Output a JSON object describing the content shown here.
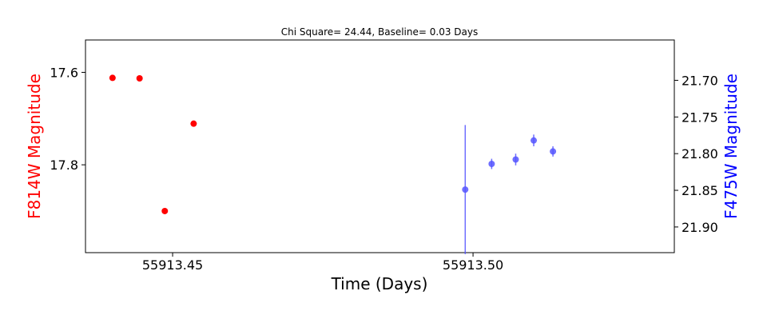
{
  "chart_data": {
    "type": "scatter",
    "title": "Chi Square= 24.44, Baseline= 0.03 Days",
    "xlabel": "Time (Days)",
    "xlim": [
      55913.4355,
      55913.5335
    ],
    "xticks": [
      {
        "value": 55913.45,
        "label": "55913.45"
      },
      {
        "value": 55913.5,
        "label": "55913.50"
      }
    ],
    "y_left": {
      "label": "F814W Magnitude",
      "color": "#ff0000",
      "inverted": true,
      "ylim": [
        17.53,
        17.99
      ],
      "ticks": [
        {
          "value": 17.6,
          "label": "17.6"
        },
        {
          "value": 17.8,
          "label": "17.8"
        }
      ]
    },
    "y_right": {
      "label": "F475W Magnitude",
      "color": "#0000ff",
      "inverted": true,
      "ylim": [
        21.645,
        21.935
      ],
      "ticks": [
        {
          "value": 21.7,
          "label": "21.70"
        },
        {
          "value": 21.75,
          "label": "21.75"
        },
        {
          "value": 21.8,
          "label": "21.80"
        },
        {
          "value": 21.85,
          "label": "21.85"
        },
        {
          "value": 21.9,
          "label": "21.90"
        }
      ]
    },
    "series": [
      {
        "axis": "left",
        "color": "#ff0000",
        "points": [
          {
            "x": 55913.44,
            "y": 17.612,
            "err": 0.006
          },
          {
            "x": 55913.4445,
            "y": 17.613,
            "err": 0.003
          },
          {
            "x": 55913.4487,
            "y": 17.9,
            "err": 0.003
          },
          {
            "x": 55913.4535,
            "y": 17.711,
            "err": 0.003
          }
        ]
      },
      {
        "axis": "right",
        "color": "#5555ff",
        "points": [
          {
            "x": 55913.4987,
            "y": 21.849,
            "err": 0.088
          },
          {
            "x": 55913.5031,
            "y": 21.814,
            "err": 0.007
          },
          {
            "x": 55913.5071,
            "y": 21.808,
            "err": 0.008
          },
          {
            "x": 55913.5101,
            "y": 21.782,
            "err": 0.008
          },
          {
            "x": 55913.5133,
            "y": 21.797,
            "err": 0.007
          }
        ]
      }
    ]
  }
}
